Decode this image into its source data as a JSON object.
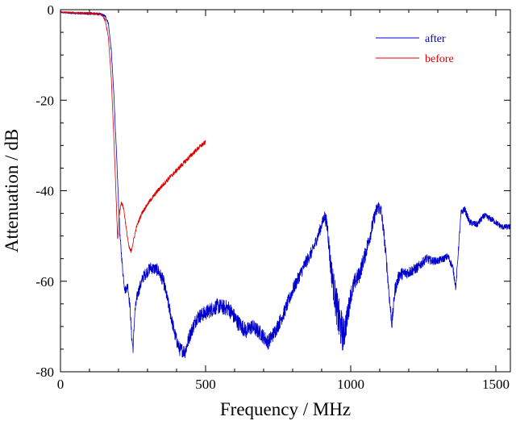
{
  "chart_data": {
    "type": "line",
    "title": "",
    "xlabel": "Frequency / MHz",
    "ylabel": "Attenuation / dB",
    "xlim": [
      0,
      1550
    ],
    "ylim": [
      -80,
      0
    ],
    "xticks": [
      0,
      500,
      1000,
      1500
    ],
    "xtick_labels": [
      "0",
      "500",
      "1000",
      "1500"
    ],
    "yticks": [
      0,
      -20,
      -40,
      -60,
      -80
    ],
    "ytick_labels": [
      "0",
      "-20",
      "-40",
      "-60",
      "-80"
    ],
    "grid": false,
    "legend_position": "top-right",
    "series": [
      {
        "name": "after",
        "color": "#0000cc",
        "noise": [
          [
            0,
            0.15
          ],
          [
            170,
            0.3
          ],
          [
            210,
            0.8
          ],
          [
            260,
            1.2
          ],
          [
            400,
            1.5
          ],
          [
            600,
            1.8
          ],
          [
            800,
            1.5
          ],
          [
            910,
            1.2
          ],
          [
            960,
            5.0
          ],
          [
            1000,
            2.0
          ],
          [
            1100,
            1.5
          ],
          [
            1150,
            1.5
          ],
          [
            1300,
            0.8
          ],
          [
            1550,
            0.6
          ]
        ],
        "points": [
          [
            0,
            -0.6
          ],
          [
            50,
            -0.8
          ],
          [
            100,
            -0.9
          ],
          [
            140,
            -1.0
          ],
          [
            155,
            -1.5
          ],
          [
            165,
            -3
          ],
          [
            175,
            -9
          ],
          [
            185,
            -20
          ],
          [
            195,
            -35
          ],
          [
            205,
            -50
          ],
          [
            215,
            -58
          ],
          [
            222,
            -62
          ],
          [
            232,
            -61
          ],
          [
            240,
            -66
          ],
          [
            245,
            -72
          ],
          [
            250,
            -75
          ],
          [
            256,
            -67
          ],
          [
            265,
            -63
          ],
          [
            285,
            -59
          ],
          [
            310,
            -57
          ],
          [
            335,
            -57.5
          ],
          [
            355,
            -60
          ],
          [
            375,
            -66
          ],
          [
            395,
            -72
          ],
          [
            410,
            -75
          ],
          [
            430,
            -75.5
          ],
          [
            445,
            -72
          ],
          [
            470,
            -68
          ],
          [
            500,
            -67
          ],
          [
            540,
            -65.5
          ],
          [
            580,
            -66
          ],
          [
            610,
            -69
          ],
          [
            640,
            -71
          ],
          [
            660,
            -70
          ],
          [
            690,
            -71.5
          ],
          [
            715,
            -73.5
          ],
          [
            740,
            -71
          ],
          [
            770,
            -67
          ],
          [
            800,
            -62
          ],
          [
            840,
            -56.5
          ],
          [
            870,
            -53
          ],
          [
            895,
            -48.5
          ],
          [
            910,
            -45.5
          ],
          [
            920,
            -48
          ],
          [
            930,
            -56
          ],
          [
            945,
            -63
          ],
          [
            960,
            -69
          ],
          [
            975,
            -72
          ],
          [
            988,
            -68
          ],
          [
            1000,
            -63
          ],
          [
            1015,
            -60
          ],
          [
            1030,
            -58.5
          ],
          [
            1050,
            -54
          ],
          [
            1070,
            -49
          ],
          [
            1085,
            -45
          ],
          [
            1095,
            -43.5
          ],
          [
            1105,
            -44.5
          ],
          [
            1115,
            -50
          ],
          [
            1125,
            -57
          ],
          [
            1135,
            -65
          ],
          [
            1142,
            -69.5
          ],
          [
            1152,
            -62
          ],
          [
            1168,
            -58.5
          ],
          [
            1200,
            -58
          ],
          [
            1230,
            -57
          ],
          [
            1260,
            -55
          ],
          [
            1280,
            -55.5
          ],
          [
            1300,
            -55.5
          ],
          [
            1320,
            -55
          ],
          [
            1335,
            -54.5
          ],
          [
            1352,
            -57
          ],
          [
            1362,
            -61.5
          ],
          [
            1370,
            -54
          ],
          [
            1380,
            -45
          ],
          [
            1392,
            -44
          ],
          [
            1410,
            -47
          ],
          [
            1435,
            -47.5
          ],
          [
            1460,
            -45.5
          ],
          [
            1490,
            -46.5
          ],
          [
            1520,
            -48
          ],
          [
            1550,
            -48
          ]
        ]
      },
      {
        "name": "before",
        "color": "#dd0000",
        "noise": [
          [
            0,
            0.15
          ],
          [
            170,
            0.3
          ],
          [
            230,
            0.4
          ],
          [
            280,
            0.4
          ],
          [
            380,
            0.5
          ],
          [
            500,
            0.5
          ]
        ],
        "points": [
          [
            0,
            -0.5
          ],
          [
            50,
            -0.7
          ],
          [
            100,
            -0.8
          ],
          [
            130,
            -0.9
          ],
          [
            145,
            -1.2
          ],
          [
            155,
            -2.5
          ],
          [
            165,
            -6
          ],
          [
            175,
            -15
          ],
          [
            185,
            -30
          ],
          [
            192,
            -42
          ],
          [
            197,
            -51
          ],
          [
            203,
            -45
          ],
          [
            210,
            -42.5
          ],
          [
            218,
            -44
          ],
          [
            228,
            -49
          ],
          [
            236,
            -52.5
          ],
          [
            243,
            -53.5
          ],
          [
            250,
            -51.5
          ],
          [
            262,
            -48
          ],
          [
            280,
            -45
          ],
          [
            305,
            -42.5
          ],
          [
            335,
            -40
          ],
          [
            370,
            -37.5
          ],
          [
            400,
            -35.5
          ],
          [
            430,
            -33.5
          ],
          [
            460,
            -31.5
          ],
          [
            485,
            -30
          ],
          [
            500,
            -29.3
          ]
        ]
      }
    ]
  }
}
